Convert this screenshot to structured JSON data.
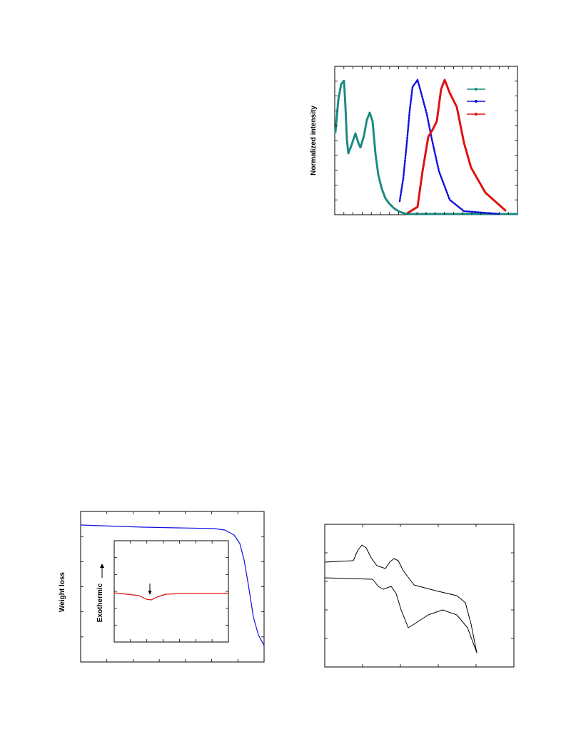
{
  "figures": [
    {
      "y_label": "Normalized intensity"
    },
    {
      "y_label": "Weight loss",
      "inset_y_label": "Exothermic"
    }
  ]
}
